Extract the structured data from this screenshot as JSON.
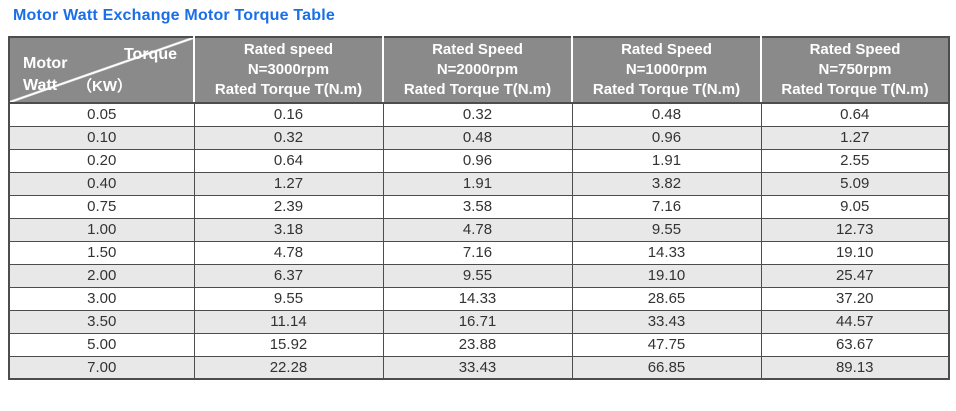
{
  "title": "Motor Watt Exchange Motor Torque Table",
  "colors": {
    "title": "#1a6fe8",
    "header_bg": "#8a8a8a",
    "header_text": "#ffffff",
    "row_stripe": "#e8e8e8",
    "border": "#4d4d4d",
    "cell_text": "#333333"
  },
  "table": {
    "corner": {
      "top_right": "Torque",
      "left_line1": "Motor",
      "left_line2": "Watt",
      "unit": "（KW）"
    },
    "columns": [
      {
        "lines": [
          "Rated speed",
          "N=3000rpm",
          "Rated Torque T(N.m)"
        ]
      },
      {
        "lines": [
          "Rated Speed",
          "N=2000rpm",
          "Rated Torque T(N.m)"
        ]
      },
      {
        "lines": [
          "Rated Speed",
          "N=1000rpm",
          "Rated Torque T(N.m)"
        ]
      },
      {
        "lines": [
          "Rated Speed",
          "N=750rpm",
          "Rated Torque T(N.m)"
        ]
      }
    ],
    "rows": [
      {
        "watt": "0.05",
        "torques": [
          "0.16",
          "0.32",
          "0.48",
          "0.64"
        ]
      },
      {
        "watt": "0.10",
        "torques": [
          "0.32",
          "0.48",
          "0.96",
          "1.27"
        ]
      },
      {
        "watt": "0.20",
        "torques": [
          "0.64",
          "0.96",
          "1.91",
          "2.55"
        ]
      },
      {
        "watt": "0.40",
        "torques": [
          "1.27",
          "1.91",
          "3.82",
          "5.09"
        ]
      },
      {
        "watt": "0.75",
        "torques": [
          "2.39",
          "3.58",
          "7.16",
          "9.05"
        ]
      },
      {
        "watt": "1.00",
        "torques": [
          "3.18",
          "4.78",
          "9.55",
          "12.73"
        ]
      },
      {
        "watt": "1.50",
        "torques": [
          "4.78",
          "7.16",
          "14.33",
          "19.10"
        ]
      },
      {
        "watt": "2.00",
        "torques": [
          "6.37",
          "9.55",
          "19.10",
          "25.47"
        ]
      },
      {
        "watt": "3.00",
        "torques": [
          "9.55",
          "14.33",
          "28.65",
          "37.20"
        ]
      },
      {
        "watt": "3.50",
        "torques": [
          "11.14",
          "16.71",
          "33.43",
          "44.57"
        ]
      },
      {
        "watt": "5.00",
        "torques": [
          "15.92",
          "23.88",
          "47.75",
          "63.67"
        ]
      },
      {
        "watt": "7.00",
        "torques": [
          "22.28",
          "33.43",
          "66.85",
          "89.13"
        ]
      }
    ]
  },
  "chart_data": {
    "type": "table",
    "title": "Motor Watt Exchange Motor Torque Table",
    "row_header": "Motor Watt (KW)",
    "column_headers": [
      "Rated speed N=3000rpm Rated Torque T(N.m)",
      "Rated Speed N=2000rpm Rated Torque T(N.m)",
      "Rated Speed N=1000rpm Rated Torque T(N.m)",
      "Rated Speed N=750rpm Rated Torque T(N.m)"
    ],
    "motor_watt_kw": [
      0.05,
      0.1,
      0.2,
      0.4,
      0.75,
      1.0,
      1.5,
      2.0,
      3.0,
      3.5,
      5.0,
      7.0
    ],
    "series": [
      {
        "name": "N=3000rpm",
        "values": [
          0.16,
          0.32,
          0.64,
          1.27,
          2.39,
          3.18,
          4.78,
          6.37,
          9.55,
          11.14,
          15.92,
          22.28
        ]
      },
      {
        "name": "N=2000rpm",
        "values": [
          0.32,
          0.48,
          0.96,
          1.91,
          3.58,
          4.78,
          7.16,
          9.55,
          14.33,
          16.71,
          23.88,
          33.43
        ]
      },
      {
        "name": "N=1000rpm",
        "values": [
          0.48,
          0.96,
          1.91,
          3.82,
          7.16,
          9.55,
          14.33,
          19.1,
          28.65,
          33.43,
          47.75,
          66.85
        ]
      },
      {
        "name": "N=750rpm",
        "values": [
          0.64,
          1.27,
          2.55,
          5.09,
          9.05,
          12.73,
          19.1,
          25.47,
          37.2,
          44.57,
          63.67,
          89.13
        ]
      }
    ]
  }
}
